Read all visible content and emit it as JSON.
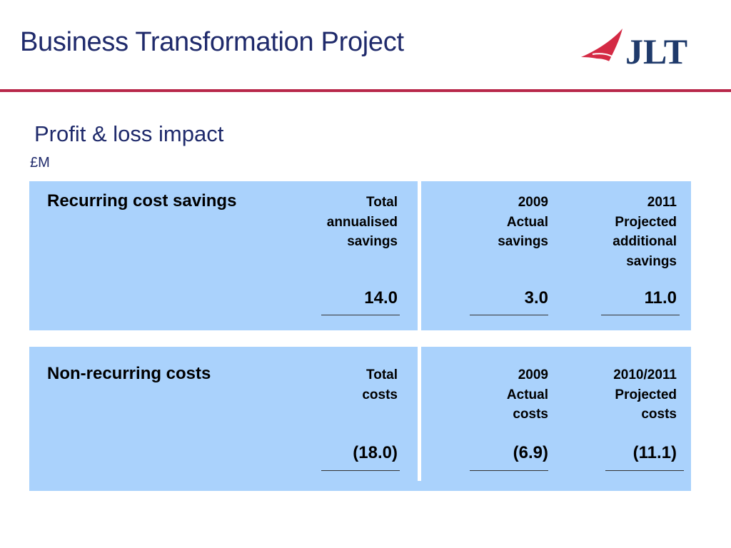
{
  "header": {
    "title": "Business Transformation Project",
    "logo_text": "JLT",
    "rule_color": "#b8284a"
  },
  "section": {
    "subtitle": "Profit & loss impact",
    "unit": "£M"
  },
  "recurring": {
    "heading": "Recurring cost savings",
    "columns": [
      {
        "lines": [
          "Total",
          "annualised",
          "savings"
        ],
        "value": "14.0"
      },
      {
        "lines": [
          "2009",
          "Actual",
          "savings"
        ],
        "value": "3.0"
      },
      {
        "lines": [
          "2011",
          "Projected",
          "additional",
          "savings"
        ],
        "value": "11.0"
      }
    ]
  },
  "non_recurring": {
    "heading": "Non-recurring costs",
    "columns": [
      {
        "lines": [
          "Total",
          "costs"
        ],
        "value": "(18.0)"
      },
      {
        "lines": [
          "2009",
          "Actual",
          "costs"
        ],
        "value": "(6.9)"
      },
      {
        "lines": [
          "2010/2011",
          "Projected",
          "costs"
        ],
        "value": "(11.1)"
      }
    ]
  },
  "colors": {
    "panel_bg": "#aad2fc",
    "title_text": "#1f2a6b",
    "logo_red": "#d42a44",
    "logo_navy": "#1f3a6b"
  }
}
